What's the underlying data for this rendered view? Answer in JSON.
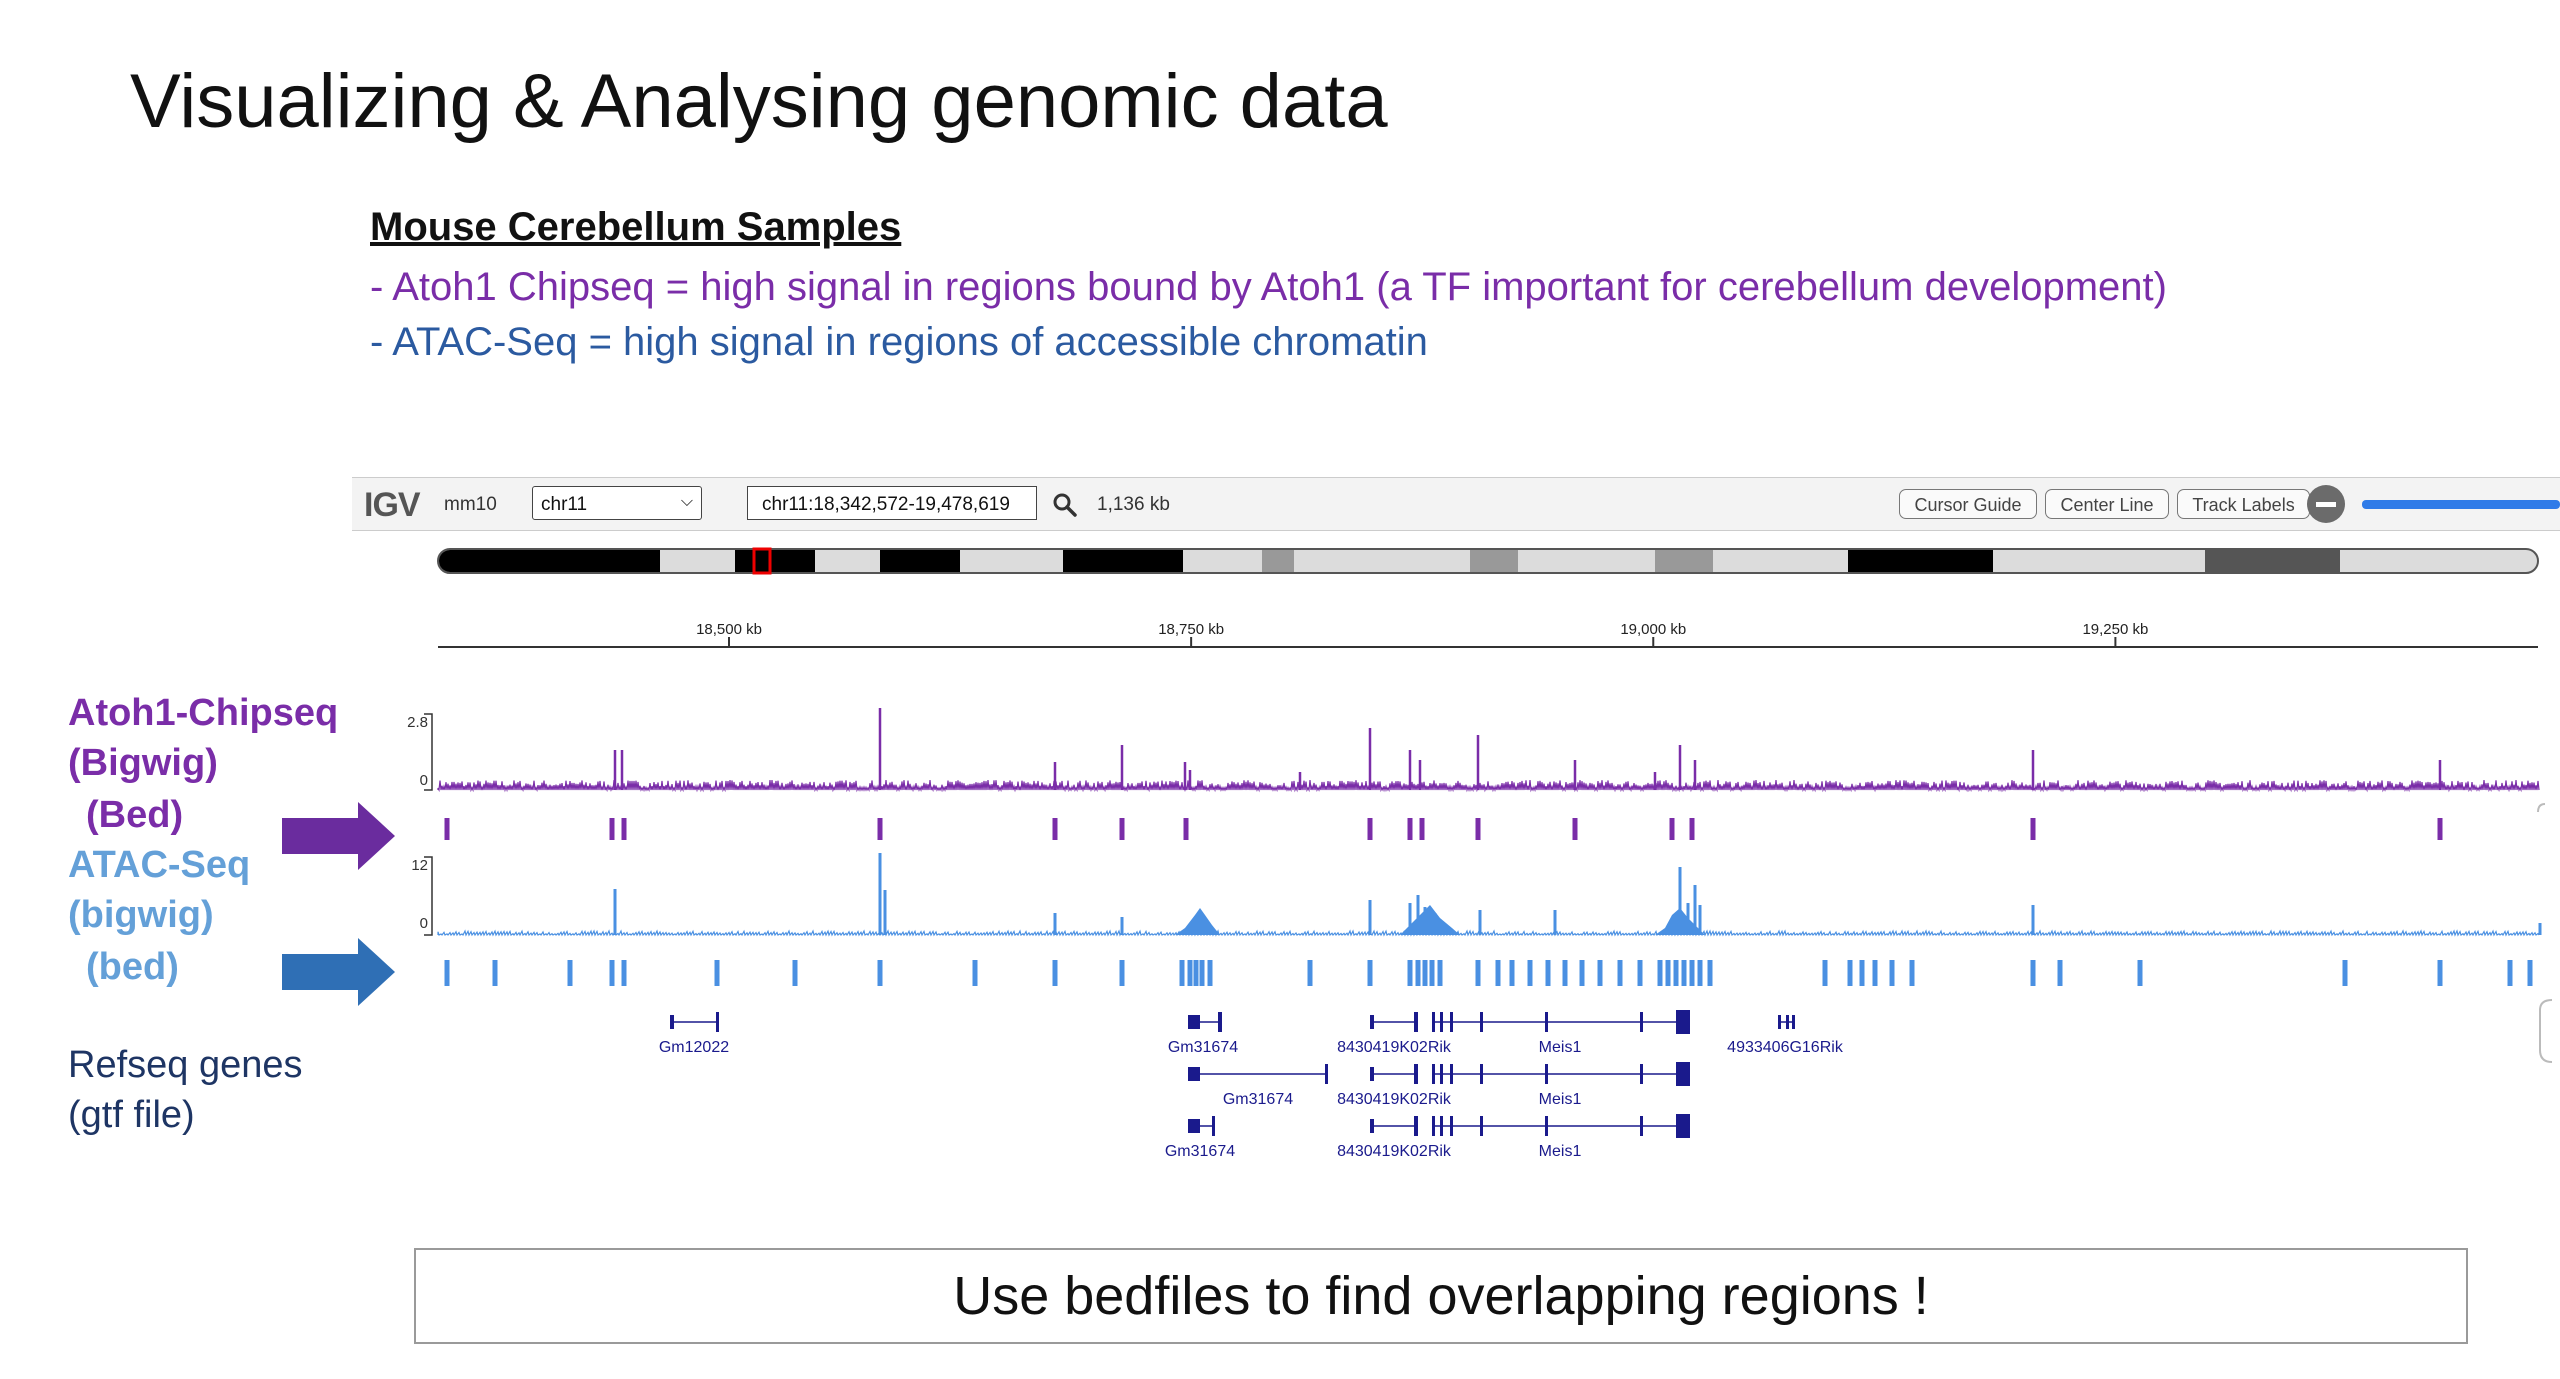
{
  "slide": {
    "title": "Visualizing & Analysing genomic data",
    "subheading": "Mouse Cerebellum Samples",
    "line1": "- Atoh1 Chipseq = high signal  in regions bound by Atoh1 (a TF important for cerebellum development)",
    "line2": "- ATAC-Seq = high signal in regions of accessible chromatin",
    "footer": "Use bedfiles to find overlapping regions !"
  },
  "track_labels": {
    "atoh1_1": "Atoh1-Chipseq",
    "atoh1_2": "(Bigwig)",
    "atoh1_bed": "(Bed)",
    "atac_1": "ATAC-Seq",
    "atac_2": "(bigwig)",
    "atac_bed": "(bed)",
    "refseq_1": "Refseq genes",
    "refseq_2": "(gtf file)"
  },
  "igv": {
    "logo": "IGV",
    "genome": "mm10",
    "chromosome": "chr11",
    "locus": "chr11:18,342,572-19,478,619",
    "width": "1,136 kb",
    "buttons": [
      "Cursor Guide",
      "Center Line",
      "Track Labels"
    ],
    "ruler_ticks": [
      {
        "kb": 18500,
        "label": "18,500 kb"
      },
      {
        "kb": 18750,
        "label": "18,750 kb"
      },
      {
        "kb": 19000,
        "label": "19,000 kb"
      },
      {
        "kb": 19250,
        "label": "19,250 kb"
      }
    ],
    "view_start_kb": 18342.572,
    "view_end_kb": 19478.619,
    "atoh1_scale": {
      "max": "2.8",
      "min": "0"
    },
    "atac_scale": {
      "max": "12",
      "min": "0"
    },
    "genes": [
      {
        "label": "Gm12022",
        "row": 0
      },
      {
        "label": "Gm31674",
        "row": 0
      },
      {
        "label": "8430419K02Rik",
        "row": 0
      },
      {
        "label": "Meis1",
        "row": 0
      },
      {
        "label": "4933406G16Rik",
        "row": 0
      },
      {
        "label": "Gm31674",
        "row": 1
      },
      {
        "label": "8430419K02Rik",
        "row": 1
      },
      {
        "label": "Meis1",
        "row": 1
      },
      {
        "label": "Gm31674",
        "row": 2
      },
      {
        "label": "8430419K02Rik",
        "row": 2
      },
      {
        "label": "Meis1",
        "row": 2
      }
    ]
  },
  "colors": {
    "atoh1": "#7a2da8",
    "atac": "#4a90e2",
    "gene": "#1a1a8c",
    "arrow_purple": "#6a2c9e",
    "arrow_blue": "#2f6fb5"
  }
}
